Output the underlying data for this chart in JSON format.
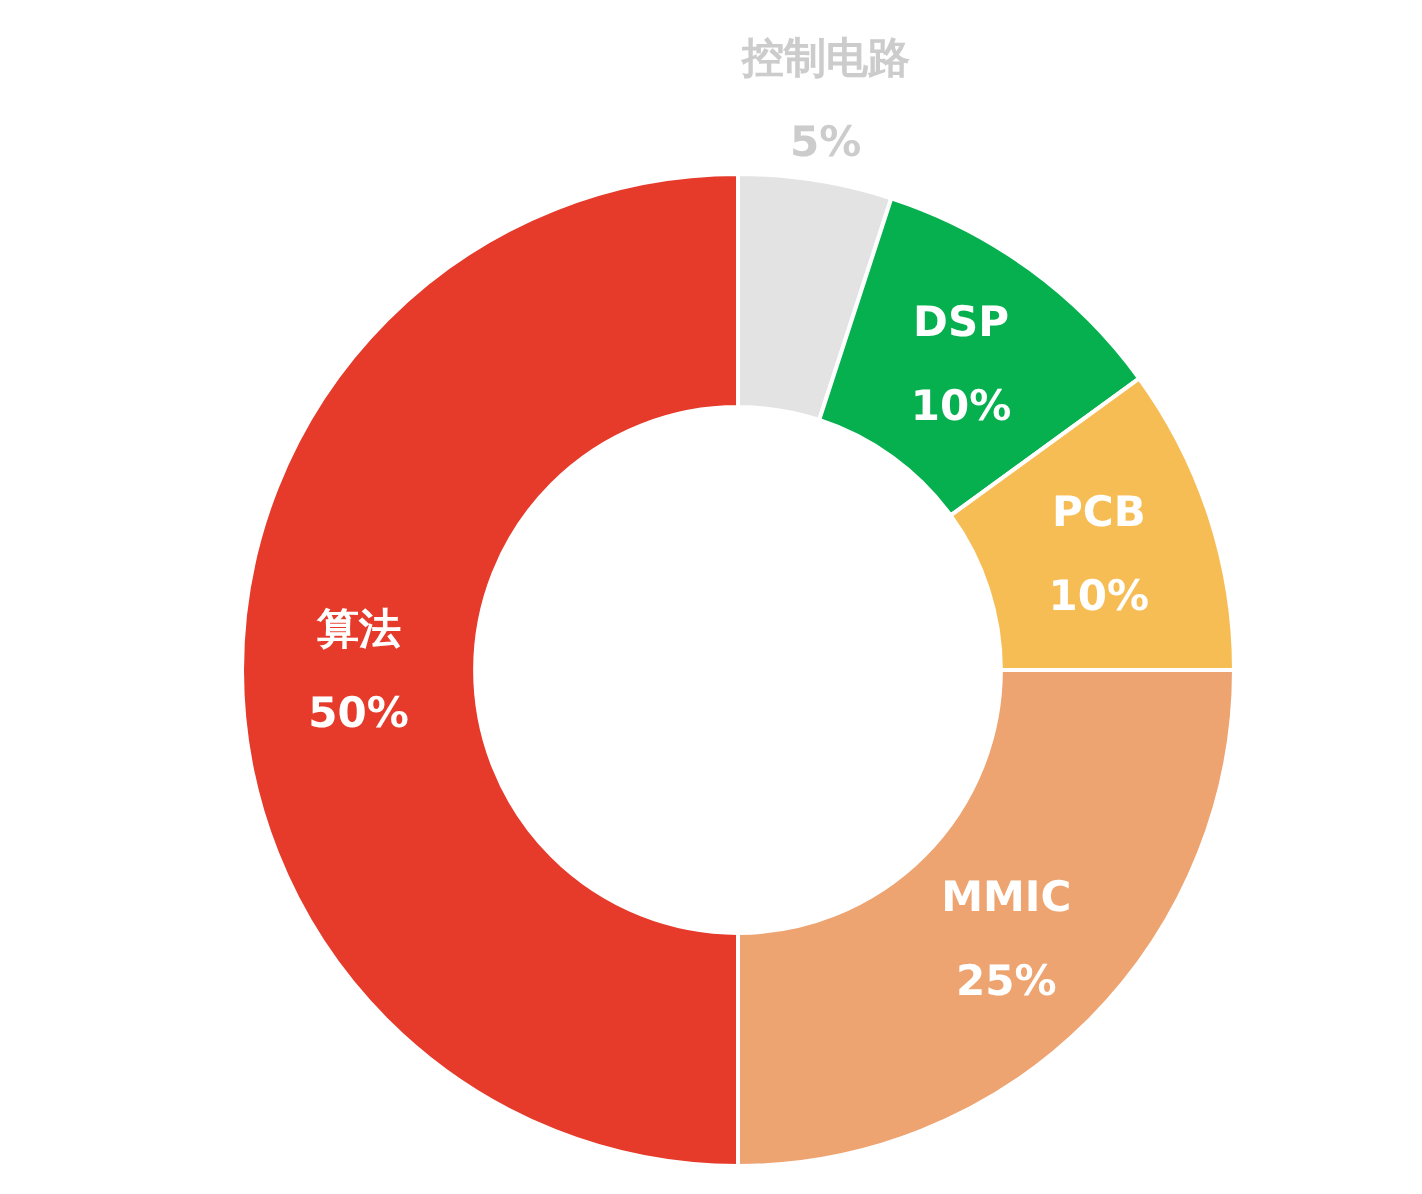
{
  "chart_data": {
    "type": "donut",
    "categories": [
      "控制电路",
      "DSP",
      "PCB",
      "MMIC",
      "算法"
    ],
    "values": [
      5,
      10,
      10,
      25,
      50
    ],
    "colors": [
      "#e3e3e3",
      "#06b04f",
      "#f7bd55",
      "#eea471",
      "#e63a2b"
    ],
    "value_labels": [
      "5%",
      "10%",
      "10%",
      "25%",
      "50%"
    ]
  }
}
